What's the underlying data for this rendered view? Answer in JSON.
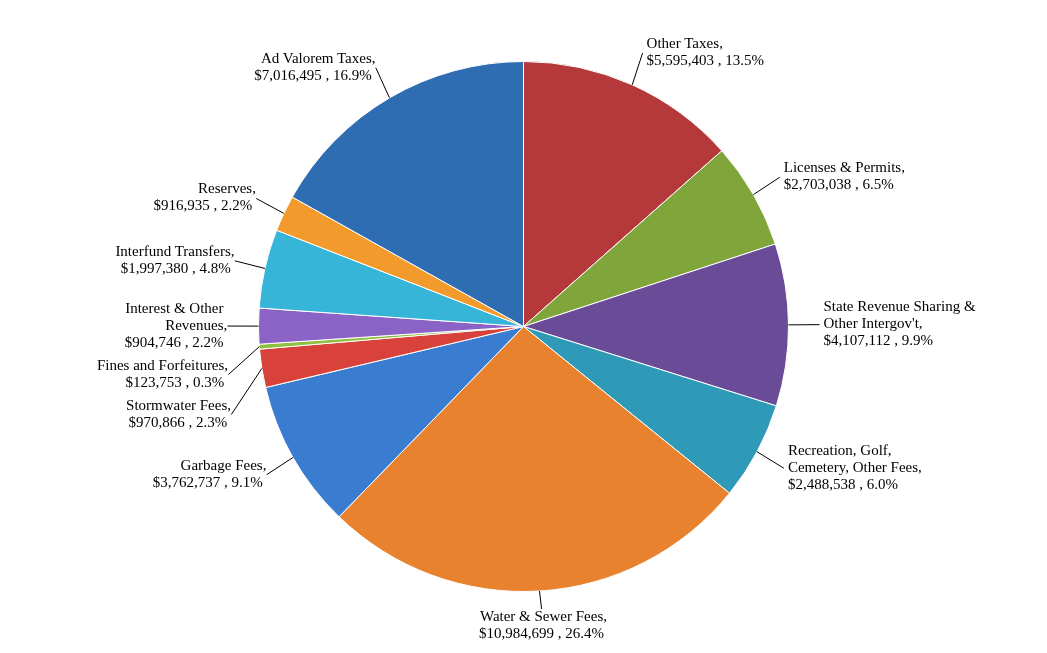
{
  "chart_data": {
    "type": "pie",
    "categories": [
      "Other Taxes",
      "Licenses & Permits",
      "State Revenue Sharing & Other Intergov't",
      "Recreation, Golf, Cemetery, Other Fees",
      "Water & Sewer Fees",
      "Garbage Fees",
      "Stormwater Fees",
      "Fines and Forfeitures",
      "Interest & Other Revenues",
      "Interfund Transfers",
      "Reserves",
      "Ad Valorem Taxes"
    ],
    "values": [
      5595403,
      2703038,
      4107112,
      2488538,
      10984699,
      3762737,
      970866,
      123753,
      904746,
      1997380,
      916935,
      7016495
    ],
    "value_labels": [
      ", $5,595,403 , 13.5%",
      ", $2,703,038 , 6.5%",
      ", $4,107,112 , 9.9%",
      ", $2,488,538 , 6.0%",
      ", $10,984,699 , 26.4%",
      ", $3,762,737 , 9.1%",
      ", $970,866 , 2.3%",
      ", $123,753 , 0.3%",
      ", $904,746 , 2.2%",
      ", $1,997,380 , 4.8%",
      ", $916,935 , 2.2%",
      ", $7,016,495 , 16.9%"
    ],
    "colors": [
      "#b5383b",
      "#7fa53b",
      "#6a4b98",
      "#2f9ab8",
      "#e8822e",
      "#3a7ccf",
      "#d9413b",
      "#8fbf3f",
      "#8b63c7",
      "#36b5d9",
      "#f29b2c",
      "#2f6db3"
    ]
  }
}
